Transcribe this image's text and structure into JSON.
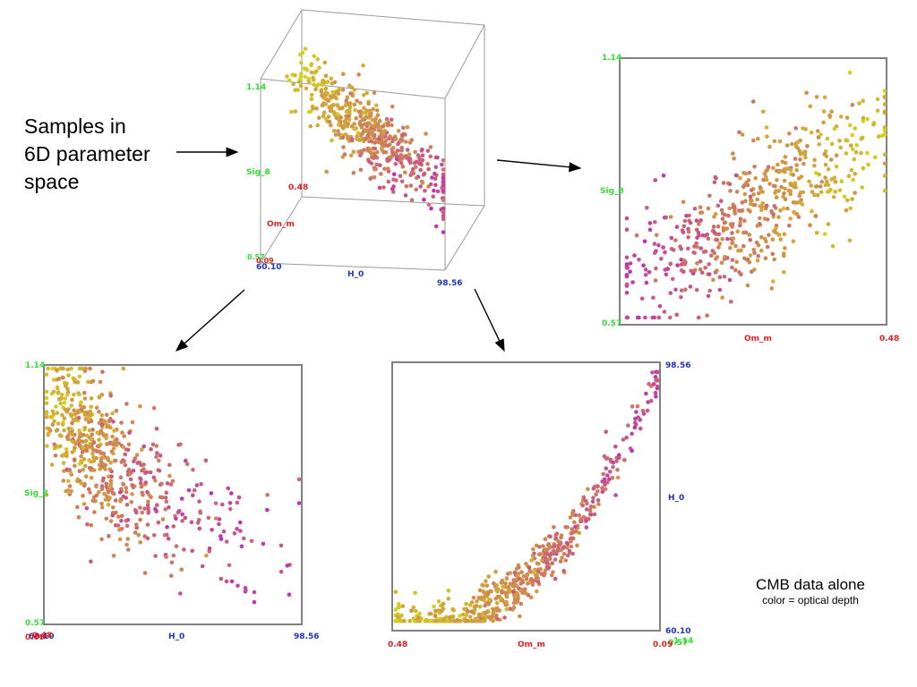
{
  "captions": {
    "samples_lines": [
      "Samples in",
      "6D parameter",
      "space"
    ],
    "note_title": "CMB data alone",
    "note_subtitle": "color = optical depth"
  },
  "colors": {
    "sig8_label": "#33dd33",
    "om_label": "#dd2222",
    "h0_label": "#2233bb",
    "frame": "#808080",
    "cube_edge": "#9a9a9a",
    "low_color": "#d2d21e",
    "mid_color": "#d08a4e",
    "high_color": "#bf2fb8"
  },
  "chart_data": [
    {
      "id": "cube-3d",
      "type": "scatter",
      "title": "",
      "axes": {
        "x": {
          "label": "H_0",
          "min_label": "60.10",
          "max_label": "98.56",
          "range": [
            60.1,
            98.56
          ]
        },
        "y": {
          "label": "Sig_8",
          "min_label": "0.57",
          "max_label": "1.14",
          "range": [
            0.57,
            1.14
          ]
        },
        "z": {
          "label": "Om_m",
          "min_label": "0.09",
          "max_label": "0.48",
          "range": [
            0.09,
            0.48
          ]
        }
      },
      "color_encoding": "optical depth",
      "n_points": 520
    },
    {
      "id": "om-vs-sig8",
      "type": "scatter",
      "title": "",
      "xlabel": "Om_m",
      "x_tick_labels": [
        "0.48"
      ],
      "x_range": [
        0.09,
        0.48
      ],
      "ylabel": "Sig_8",
      "y_tick_labels": [
        "1.14",
        "0.57"
      ],
      "y_range": [
        0.57,
        1.14
      ],
      "color_encoding": "optical depth",
      "n_points": 560
    },
    {
      "id": "h0-vs-sig8",
      "type": "scatter",
      "title": "",
      "xlabel": "H_0",
      "x_tick_labels": [
        "60.10",
        "98.56"
      ],
      "x_range": [
        60.1,
        98.56
      ],
      "ylabel": "Sig_8",
      "y_tick_labels": [
        "1.14",
        "0.57"
      ],
      "y_range": [
        0.57,
        1.14
      ],
      "x_overlap_labels": [
        "0.09",
        "0.48"
      ],
      "color_encoding": "optical depth",
      "n_points": 620
    },
    {
      "id": "om-vs-h0",
      "type": "scatter",
      "title": "",
      "xlabel": "Om_m",
      "x_tick_labels": [
        "0.48",
        "0.09"
      ],
      "x_range": [
        0.48,
        0.09
      ],
      "ylabel": "H_0",
      "y_tick_labels": [
        "98.56",
        "60.10"
      ],
      "y_range": [
        60.1,
        98.56
      ],
      "corner_overlap_labels": [
        "0.57",
        "1.14"
      ],
      "color_encoding": "optical depth",
      "n_points": 560
    }
  ]
}
